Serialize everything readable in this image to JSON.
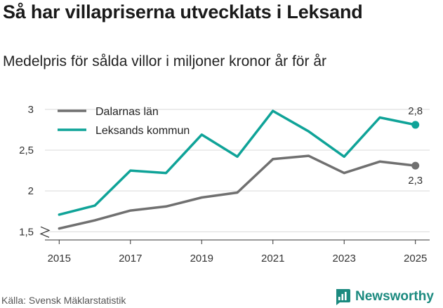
{
  "title": "Så har villapriserna utvecklats i Leksand",
  "subtitle": "Medelpris för sålda villor i miljoner kronor år för år",
  "source": "Källa: Svensk Mäklarstatistik",
  "brand": "Newsworthy",
  "colors": {
    "dalarna": "#707070",
    "leksand": "#0fa398",
    "grid": "#d9d9d9",
    "brand": "#1b8a7f"
  },
  "chart_data": {
    "type": "line",
    "title": "Så har villapriserna utvecklats i Leksand",
    "subtitle": "Medelpris för sålda villor i miljoner kronor år för år",
    "xlabel": "",
    "ylabel": "",
    "x": [
      2015,
      2016,
      2017,
      2018,
      2019,
      2020,
      2021,
      2022,
      2023,
      2024,
      2025
    ],
    "xticks": [
      "2015",
      "2017",
      "2019",
      "2021",
      "2023",
      "2025"
    ],
    "xtick_values": [
      2015,
      2017,
      2019,
      2021,
      2023,
      2025
    ],
    "yticks": [
      "1,5",
      "2",
      "2,5",
      "3"
    ],
    "ytick_values": [
      1.5,
      2,
      2.5,
      3
    ],
    "ylim": [
      1.4,
      3.05
    ],
    "xlim": [
      2014.6,
      2025.4
    ],
    "grid": true,
    "legend_position": "top-left",
    "series": [
      {
        "name": "Dalarnas län",
        "color": "#707070",
        "values": [
          1.54,
          1.64,
          1.76,
          1.81,
          1.92,
          1.98,
          2.39,
          2.43,
          2.22,
          2.36,
          2.31
        ],
        "end_label": "2,3"
      },
      {
        "name": "Leksands kommun",
        "color": "#0fa398",
        "values": [
          1.71,
          1.82,
          2.25,
          2.22,
          2.69,
          2.42,
          2.98,
          2.73,
          2.42,
          2.9,
          2.81
        ],
        "end_label": "2,8"
      }
    ]
  }
}
